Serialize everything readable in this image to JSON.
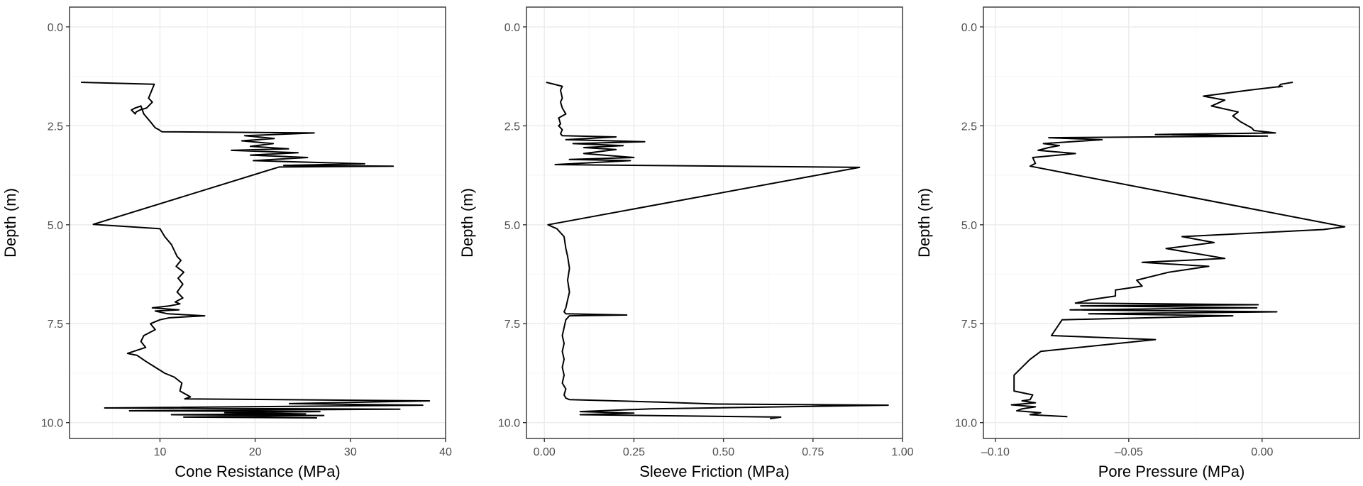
{
  "chart_data": [
    {
      "type": "line",
      "xlabel": "Cone Resistance (MPa)",
      "ylabel": "Depth (m)",
      "xlim": [
        0.5,
        40
      ],
      "ylim": [
        10.4,
        -0.5
      ],
      "xticks": [
        10,
        20,
        30,
        40
      ],
      "xtick_labels": [
        "10",
        "20",
        "30",
        "40"
      ],
      "yticks": [
        0,
        2.5,
        5,
        7.5,
        10
      ],
      "ytick_labels": [
        "0.0",
        "2.5",
        "5.0",
        "7.5",
        "10.0"
      ],
      "y_reversed": true,
      "grid": true,
      "series": [
        {
          "x": [
            1.7,
            9.4,
            8.8,
            9.2,
            8.6,
            7.9,
            7.5,
            7.4,
            7.0,
            7.4,
            8.0,
            8.3,
            9.0,
            9.5,
            9.9,
            10.2,
            26.2,
            18.9,
            22.0,
            18.6,
            21.9,
            19.5,
            23.5,
            17.5,
            24.5,
            19.5,
            25.5,
            19.8,
            25.9,
            31.5,
            23.0,
            34.5,
            22.5,
            3.0,
            10.0,
            10.5,
            11.2,
            11.5,
            11.8,
            12.2,
            11.7,
            12.5,
            11.9,
            12.4,
            11.8,
            12.4,
            11.6,
            12.1,
            11.0,
            9.2,
            12.0,
            9.5,
            10.8,
            14.7,
            11.0,
            10.0,
            9.0,
            9.5,
            8.3,
            8.0,
            8.5,
            6.6,
            7.6,
            8.5,
            9.5,
            10.5,
            11.5,
            12.3,
            12.1,
            13.2,
            12.6,
            38.3,
            23.6,
            37.6,
            4.2,
            35.2,
            6.8,
            26.8,
            16.8,
            25.3,
            11.2,
            27.2,
            12.5,
            26.5
          ],
          "y": [
            1.4,
            1.45,
            1.8,
            1.9,
            2.05,
            2.1,
            2.15,
            2.2,
            2.1,
            2.05,
            2.0,
            2.2,
            2.4,
            2.55,
            2.6,
            2.65,
            2.68,
            2.75,
            2.82,
            2.88,
            2.95,
            3.02,
            3.08,
            3.12,
            3.18,
            3.24,
            3.3,
            3.38,
            3.42,
            3.46,
            3.5,
            3.52,
            3.54,
            4.99,
            5.1,
            5.3,
            5.5,
            5.65,
            5.8,
            5.9,
            6.05,
            6.2,
            6.35,
            6.5,
            6.7,
            6.85,
            6.95,
            7.0,
            7.05,
            7.1,
            7.15,
            7.18,
            7.25,
            7.3,
            7.35,
            7.4,
            7.5,
            7.65,
            7.8,
            7.95,
            8.1,
            8.25,
            8.3,
            8.45,
            8.6,
            8.75,
            8.85,
            9.0,
            9.2,
            9.35,
            9.4,
            9.45,
            9.52,
            9.56,
            9.63,
            9.66,
            9.7,
            9.72,
            9.75,
            9.78,
            9.8,
            9.82,
            9.86,
            9.88
          ]
        }
      ]
    },
    {
      "type": "line",
      "xlabel": "Sleeve Friction (MPa)",
      "ylabel": "Depth (m)",
      "xlim": [
        -0.05,
        1.0
      ],
      "ylim": [
        10.4,
        -0.5
      ],
      "xticks": [
        0.0,
        0.25,
        0.5,
        0.75,
        1.0
      ],
      "xtick_labels": [
        "0.00",
        "0.25",
        "0.50",
        "0.75",
        "1.00"
      ],
      "yticks": [
        0,
        2.5,
        5,
        7.5,
        10
      ],
      "ytick_labels": [
        "0.0",
        "2.5",
        "5.0",
        "7.5",
        "10.0"
      ],
      "y_reversed": true,
      "grid": true,
      "series": [
        {
          "x": [
            0.005,
            0.05,
            0.045,
            0.05,
            0.045,
            0.05,
            0.06,
            0.04,
            0.045,
            0.04,
            0.045,
            0.05,
            0.045,
            0.05,
            0.2,
            0.06,
            0.28,
            0.08,
            0.22,
            0.11,
            0.2,
            0.11,
            0.25,
            0.07,
            0.24,
            0.03,
            0.88,
            0.01,
            0.035,
            0.055,
            0.06,
            0.065,
            0.07,
            0.065,
            0.07,
            0.065,
            0.06,
            0.055,
            0.06,
            0.23,
            0.07,
            0.06,
            0.055,
            0.05,
            0.055,
            0.05,
            0.055,
            0.05,
            0.055,
            0.05,
            0.06,
            0.055,
            0.06,
            0.07,
            0.32,
            0.48,
            0.96,
            0.3,
            0.1,
            0.25,
            0.1,
            0.66,
            0.63
          ],
          "y": [
            1.4,
            1.5,
            1.6,
            1.8,
            1.9,
            2.05,
            2.2,
            2.3,
            2.45,
            2.5,
            2.55,
            2.6,
            2.7,
            2.75,
            2.78,
            2.85,
            2.9,
            2.95,
            3.0,
            3.05,
            3.1,
            3.2,
            3.3,
            3.35,
            3.38,
            3.48,
            3.55,
            5.0,
            5.1,
            5.3,
            5.6,
            5.8,
            6.1,
            6.4,
            6.7,
            6.9,
            7.1,
            7.2,
            7.25,
            7.28,
            7.3,
            7.4,
            7.6,
            7.8,
            8.0,
            8.2,
            8.4,
            8.6,
            8.8,
            9.0,
            9.15,
            9.3,
            9.38,
            9.42,
            9.48,
            9.53,
            9.56,
            9.65,
            9.72,
            9.76,
            9.8,
            9.86,
            9.9
          ]
        }
      ]
    },
    {
      "type": "line",
      "xlabel": "Pore Pressure (MPa)",
      "ylabel": "Depth (m)",
      "xlim": [
        -0.1045,
        0.0365
      ],
      "ylim": [
        10.4,
        -0.5
      ],
      "xticks": [
        -0.1,
        -0.05,
        0.0
      ],
      "xtick_labels": [
        "–0.10",
        "–0.05",
        "0.00"
      ],
      "yticks": [
        0,
        2.5,
        5,
        7.5,
        10
      ],
      "ytick_labels": [
        "0.0",
        "2.5",
        "5.0",
        "7.5",
        "10.0"
      ],
      "y_reversed": true,
      "grid": true,
      "series": [
        {
          "x": [
            0.0115,
            0.007,
            0.006,
            0.0075,
            -0.005,
            -0.022,
            -0.014,
            -0.019,
            -0.009,
            -0.011,
            -0.008,
            -0.004,
            -0.003,
            0.005,
            -0.04,
            0.002,
            -0.08,
            -0.06,
            -0.082,
            -0.076,
            -0.08,
            -0.084,
            -0.07,
            -0.086,
            -0.085,
            -0.087,
            0.031,
            0.023,
            -0.03,
            -0.018,
            -0.036,
            -0.014,
            -0.045,
            -0.02,
            -0.035,
            -0.047,
            -0.045,
            -0.055,
            -0.055,
            -0.065,
            -0.068,
            -0.07,
            -0.0015,
            -0.068,
            -0.002,
            -0.072,
            0.0055,
            -0.065,
            -0.011,
            -0.075,
            -0.079,
            -0.04,
            -0.083,
            -0.087,
            -0.09,
            -0.093,
            -0.093,
            -0.086,
            -0.087,
            -0.09,
            -0.085,
            -0.094,
            -0.085,
            -0.09,
            -0.092,
            -0.083,
            -0.087,
            -0.073
          ],
          "y": [
            1.4,
            1.45,
            1.52,
            1.5,
            1.6,
            1.75,
            1.85,
            2.0,
            2.15,
            2.25,
            2.4,
            2.55,
            2.62,
            2.68,
            2.72,
            2.76,
            2.8,
            2.85,
            2.95,
            3.0,
            3.05,
            3.12,
            3.2,
            3.3,
            3.45,
            3.52,
            5.05,
            5.12,
            5.3,
            5.45,
            5.6,
            5.85,
            5.95,
            6.05,
            6.2,
            6.4,
            6.55,
            6.65,
            6.8,
            6.9,
            6.95,
            6.98,
            7.02,
            7.05,
            7.1,
            7.15,
            7.2,
            7.25,
            7.3,
            7.4,
            7.8,
            7.9,
            8.2,
            8.4,
            8.6,
            8.8,
            9.2,
            9.3,
            9.42,
            9.45,
            9.5,
            9.55,
            9.6,
            9.65,
            9.7,
            9.75,
            9.8,
            9.85
          ]
        }
      ]
    }
  ]
}
